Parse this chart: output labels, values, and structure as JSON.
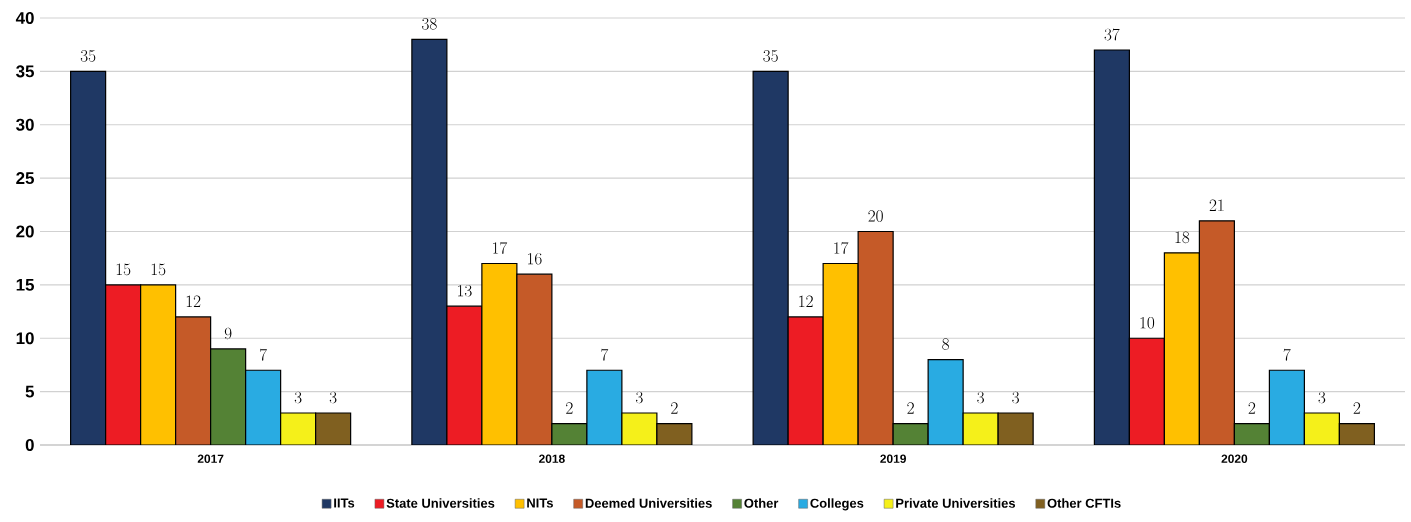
{
  "chart_data": {
    "type": "bar",
    "categories": [
      "2017",
      "2018",
      "2019",
      "2020"
    ],
    "series": [
      {
        "name": "IITs",
        "color": "#1f3864",
        "values": [
          35,
          38,
          35,
          37
        ]
      },
      {
        "name": "State Universities",
        "color": "#ed1c24",
        "values": [
          15,
          13,
          12,
          10
        ]
      },
      {
        "name": "NITs",
        "color": "#ffc000",
        "values": [
          15,
          17,
          17,
          18
        ]
      },
      {
        "name": "Deemed Universities",
        "color": "#c55a28",
        "values": [
          12,
          16,
          20,
          21
        ]
      },
      {
        "name": "Other",
        "color": "#548235",
        "values": [
          9,
          2,
          2,
          2
        ]
      },
      {
        "name": "Colleges",
        "color": "#29abe2",
        "values": [
          7,
          7,
          8,
          7
        ]
      },
      {
        "name": "Private Universities",
        "color": "#f5f01a",
        "values": [
          3,
          3,
          3,
          3
        ]
      },
      {
        "name": "Other CFTIs",
        "color": "#806020",
        "values": [
          3,
          2,
          3,
          2
        ]
      }
    ],
    "ylim": [
      0,
      40
    ],
    "yticks": [
      0,
      5,
      10,
      15,
      20,
      25,
      30,
      35,
      40
    ],
    "grid": "y",
    "legend": "bottom",
    "data_labels": true
  }
}
